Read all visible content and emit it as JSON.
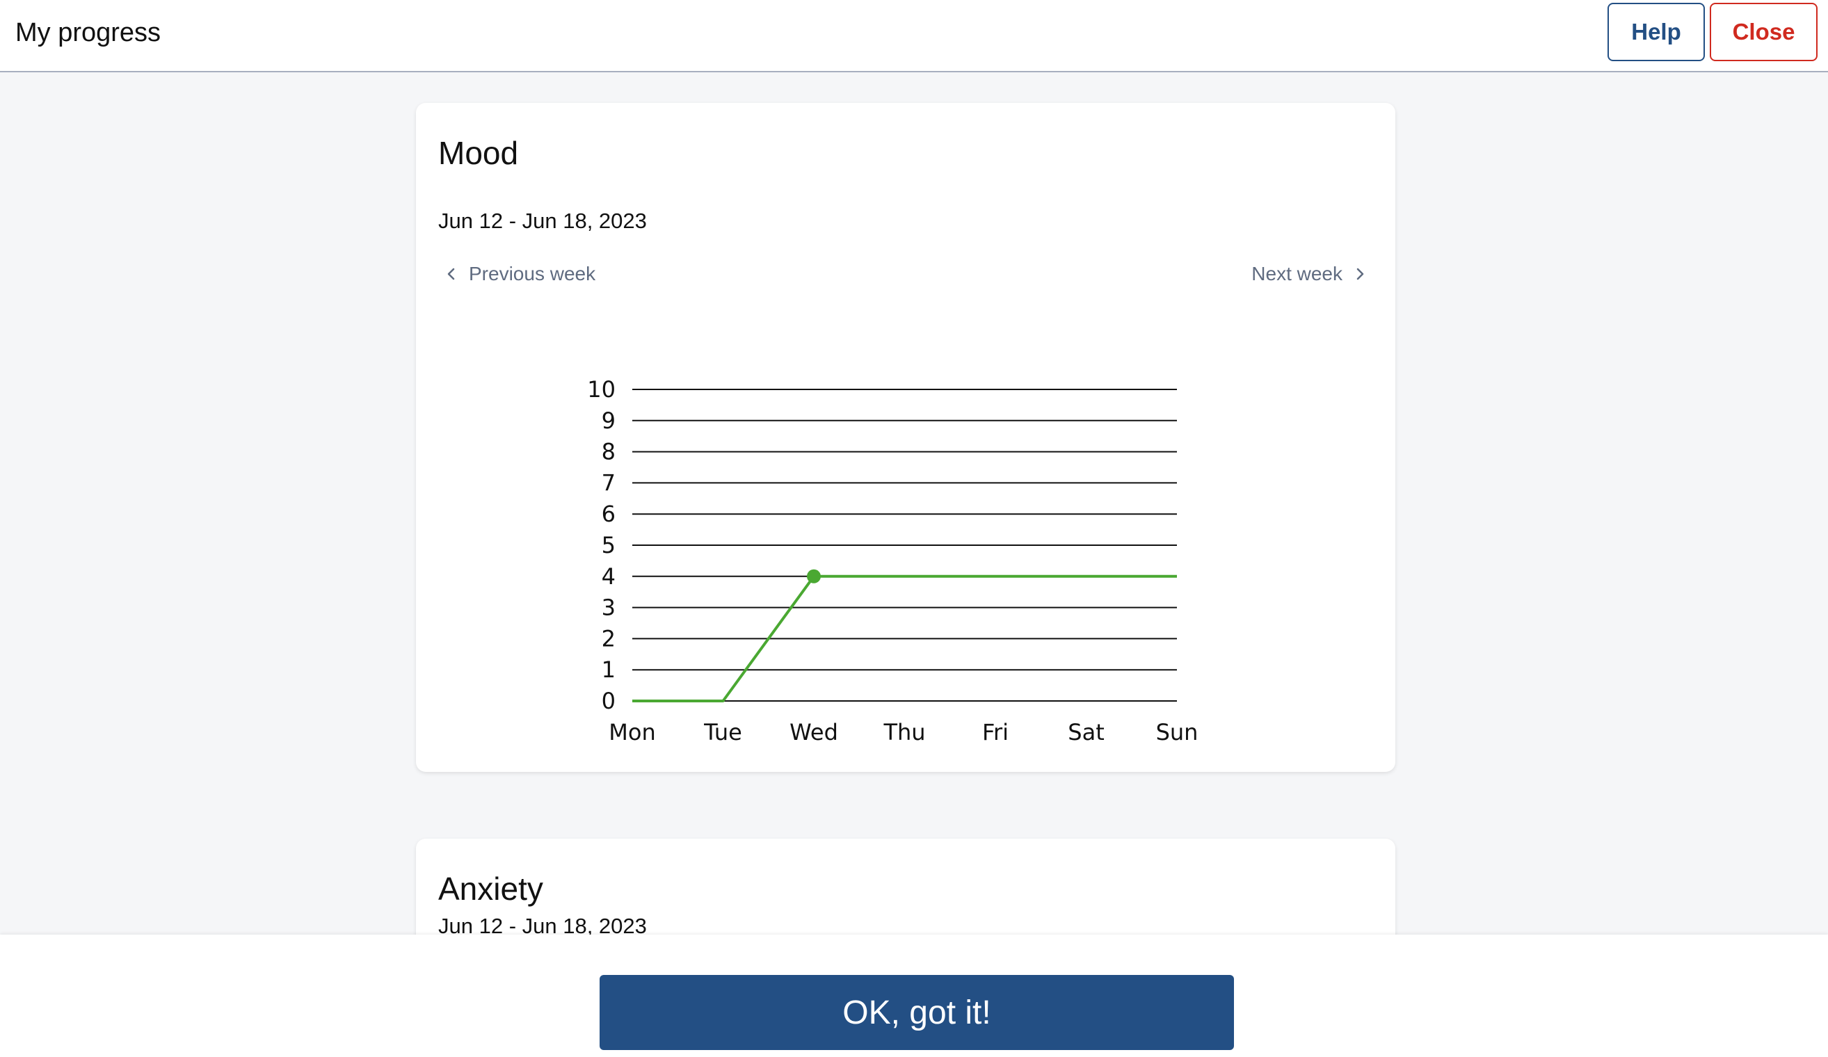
{
  "header": {
    "title": "My progress",
    "help_label": "Help",
    "close_label": "Close"
  },
  "cards": [
    {
      "title": "Mood",
      "date_range": "Jun 12 - Jun 18, 2023",
      "prev_label": "Previous week",
      "next_label": "Next week"
    },
    {
      "title": "Anxiety",
      "date_range": "Jun 12 - Jun 18, 2023"
    }
  ],
  "footer": {
    "ok_label": "OK, got it!"
  },
  "colors": {
    "primary": "#234f84",
    "danger": "#d02a1f",
    "series": "#4aa832",
    "nav_text": "#5f6b80"
  },
  "chart_data": {
    "type": "line",
    "categories": [
      "Mon",
      "Tue",
      "Wed",
      "Thu",
      "Fri",
      "Sat",
      "Sun"
    ],
    "yticks": [
      "0",
      "1",
      "2",
      "3",
      "4",
      "5",
      "6",
      "7",
      "8",
      "9",
      "10"
    ],
    "ylim": [
      0,
      10
    ],
    "grid": true,
    "series": [
      {
        "values": [
          0,
          0,
          4,
          4,
          4,
          4,
          4
        ],
        "marker_index": 2
      }
    ]
  }
}
